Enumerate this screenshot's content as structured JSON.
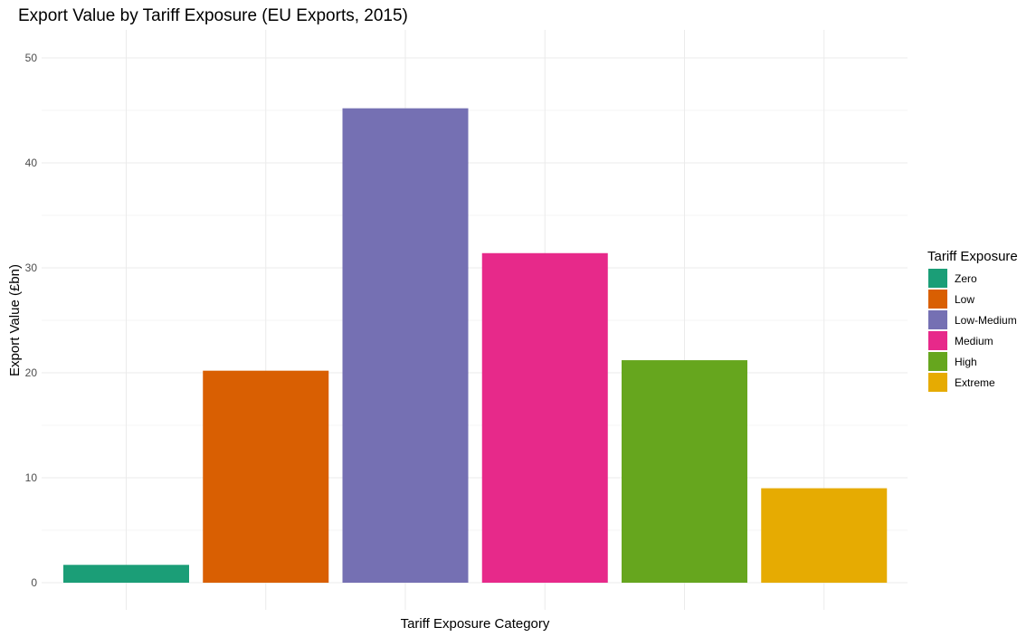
{
  "chart_data": {
    "type": "bar",
    "title": "Export Value by Tariff Exposure (EU Exports, 2015)",
    "xlabel": "Tariff Exposure Category",
    "ylabel": "Export Value (£bn)",
    "categories": [
      "Zero",
      "Low",
      "Low-Medium",
      "Medium",
      "High",
      "Extreme"
    ],
    "values": [
      1.7,
      20.2,
      45.2,
      31.4,
      21.2,
      9.0
    ],
    "colors": [
      "#1b9e77",
      "#d95f02",
      "#7570b3",
      "#e7298a",
      "#66a61e",
      "#e6ab02"
    ],
    "ylim": [
      0,
      52.8
    ],
    "yticks": [
      0,
      10,
      20,
      30,
      40,
      50
    ],
    "grid": true,
    "x_tick_labels_shown": false,
    "legend": {
      "title": "Tariff Exposure",
      "placement": "right",
      "entries": [
        "Zero",
        "Low",
        "Low-Medium",
        "Medium",
        "High",
        "Extreme"
      ]
    }
  }
}
